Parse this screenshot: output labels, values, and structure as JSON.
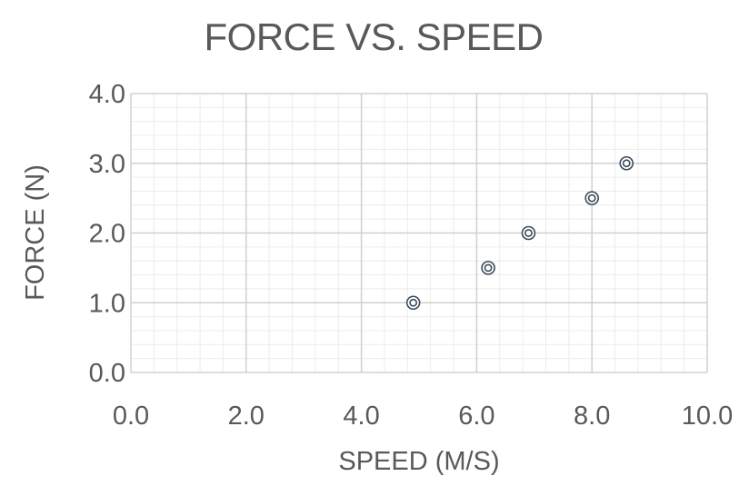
{
  "chart_data": {
    "type": "scatter",
    "title": "FORCE VS. SPEED",
    "xlabel": "SPEED (M/S)",
    "ylabel": "FORCE (N)",
    "xlim": [
      0,
      10
    ],
    "ylim": [
      0,
      4
    ],
    "x_ticks": [
      "0.0",
      "2.0",
      "4.0",
      "6.0",
      "8.0",
      "10.0"
    ],
    "y_ticks": [
      "0.0",
      "1.0",
      "2.0",
      "3.0",
      "4.0"
    ],
    "grid": true,
    "legend": "none",
    "series": [
      {
        "points": [
          {
            "x": 4.9,
            "y": 1.0
          },
          {
            "x": 6.2,
            "y": 1.5
          },
          {
            "x": 6.9,
            "y": 2.0
          },
          {
            "x": 8.0,
            "y": 2.5
          },
          {
            "x": 8.6,
            "y": 3.0
          }
        ],
        "color": "#3a4a5c"
      }
    ],
    "colors": {
      "major_grid": "#d0d0d0",
      "minor_grid": "#ececec",
      "text": "#595959",
      "marker": "#3a4a5c"
    }
  }
}
